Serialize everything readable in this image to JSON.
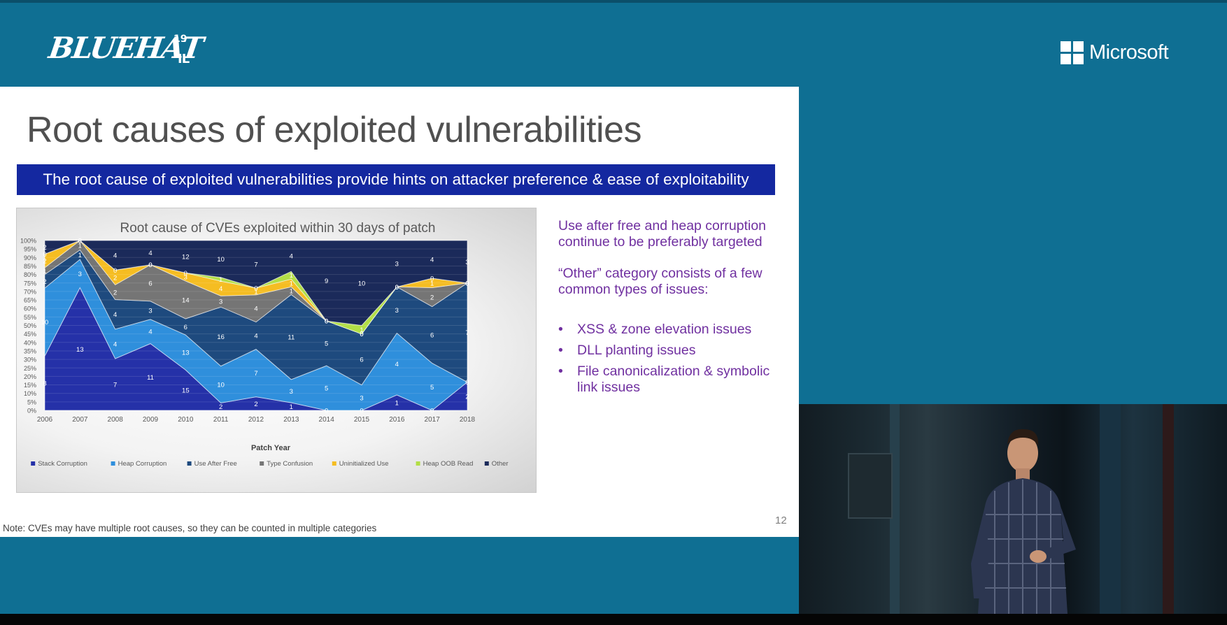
{
  "branding": {
    "event_logo_text": "BLUEHAT",
    "event_logo_sup": "19",
    "event_logo_sub": "IL",
    "company": "Microsoft"
  },
  "slide": {
    "title": "Root causes of exploited vulnerabilities",
    "banner": "The root cause of exploited vulnerabilities provide hints on attacker preference & ease of exploitability",
    "right_text": {
      "para1": "Use after free and heap corruption continue to be preferably targeted",
      "para2": "“Other” category consists of a few common types of issues:",
      "bullets": [
        "XSS & zone elevation issues",
        "DLL planting issues",
        "File canonicalization & symbolic link issues"
      ]
    },
    "page_number": "12",
    "note": "Note: CVEs may have multiple root causes, so they can be counted in multiple categories"
  },
  "chart_data": {
    "type": "area",
    "stacked": "percent",
    "title": "Root cause of CVEs exploited within 30 days of patch",
    "xlabel": "Patch Year",
    "ylabel": "",
    "ylim": [
      0,
      100
    ],
    "yticks": [
      "0%",
      "5%",
      "10%",
      "15%",
      "20%",
      "25%",
      "30%",
      "35%",
      "40%",
      "45%",
      "50%",
      "55%",
      "60%",
      "65%",
      "70%",
      "75%",
      "80%",
      "85%",
      "90%",
      "95%",
      "100%"
    ],
    "categories": [
      "2006",
      "2007",
      "2008",
      "2009",
      "2010",
      "2011",
      "2012",
      "2013",
      "2014",
      "2015",
      "2016",
      "2017",
      "2018"
    ],
    "legend_position": "bottom",
    "series": [
      {
        "name": "Stack Corruption",
        "color": "#2531a8",
        "values": [
          8,
          13,
          7,
          11,
          15,
          2,
          2,
          1,
          0,
          0,
          1,
          0,
          2
        ]
      },
      {
        "name": "Heap Corruption",
        "color": "#2f8fdc",
        "values": [
          10,
          3,
          4,
          4,
          13,
          10,
          7,
          3,
          5,
          3,
          4,
          5,
          0
        ]
      },
      {
        "name": "Use After Free",
        "color": "#1e4a7e",
        "values": [
          2,
          1,
          4,
          3,
          6,
          16,
          4,
          11,
          5,
          6,
          3,
          6,
          7
        ]
      },
      {
        "name": "Type Confusion",
        "color": "#757575",
        "values": [
          1,
          1,
          2,
          6,
          14,
          3,
          4,
          1,
          0,
          0,
          0,
          2,
          0
        ]
      },
      {
        "name": "Uninitialized Use",
        "color": "#f5bd22",
        "values": [
          2,
          0,
          2,
          0,
          3,
          4,
          1,
          1,
          0,
          0,
          0,
          1,
          0
        ]
      },
      {
        "name": "Heap OOB Read",
        "color": "#b2de46",
        "values": [
          0,
          0,
          0,
          0,
          0,
          1,
          0,
          1,
          0,
          1,
          0,
          0,
          0
        ]
      },
      {
        "name": "Other",
        "color": "#1b2a5a",
        "values": [
          2,
          0,
          4,
          4,
          12,
          10,
          7,
          4,
          9,
          10,
          3,
          4,
          3
        ]
      }
    ],
    "grid": true
  }
}
